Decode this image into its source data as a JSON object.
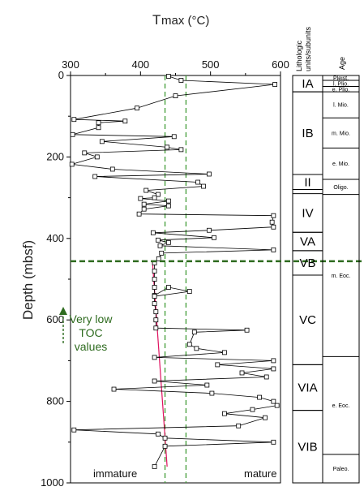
{
  "chart_data": {
    "type": "line",
    "title": "",
    "xlabel": "Tmax (°C)",
    "xlabel_main": "T",
    "xlabel_sub": "max (°C)",
    "ylabel": "Depth (mbsf)",
    "xlim": [
      300,
      600
    ],
    "ylim": [
      0,
      1000
    ],
    "y_inverted": true,
    "x_ticks": [
      "300",
      "400",
      "500",
      "600"
    ],
    "y_ticks": [
      "0",
      "200",
      "400",
      "600",
      "800",
      "1000"
    ],
    "series": [
      {
        "marker": "open-square",
        "color": "#000000",
        "points": [
          [
            440,
            2
          ],
          [
            458,
            12
          ],
          [
            592,
            22
          ],
          [
            450,
            50
          ],
          [
            395,
            80
          ],
          [
            305,
            108
          ],
          [
            378,
            112
          ],
          [
            340,
            116
          ],
          [
            340,
            128
          ],
          [
            303,
            145
          ],
          [
            448,
            150
          ],
          [
            345,
            162
          ],
          [
            438,
            176
          ],
          [
            458,
            182
          ],
          [
            320,
            190
          ],
          [
            338,
            200
          ],
          [
            302,
            218
          ],
          [
            360,
            230
          ],
          [
            498,
            242
          ],
          [
            335,
            248
          ],
          [
            482,
            262
          ],
          [
            490,
            272
          ],
          [
            408,
            282
          ],
          [
            425,
            292
          ],
          [
            420,
            300
          ],
          [
            400,
            302
          ],
          [
            440,
            308
          ],
          [
            405,
            316
          ],
          [
            440,
            320
          ],
          [
            405,
            328
          ],
          [
            398,
            340
          ],
          [
            590,
            344
          ],
          [
            588,
            360
          ],
          [
            590,
            372
          ],
          [
            498,
            380
          ],
          [
            418,
            386
          ],
          [
            505,
            398
          ],
          [
            425,
            404
          ],
          [
            440,
            410
          ],
          [
            428,
            418
          ],
          [
            590,
            428
          ],
          [
            430,
            436
          ],
          [
            426,
            450
          ],
          [
            420,
            460
          ],
          [
            420,
            480
          ],
          [
            420,
            500
          ],
          [
            420,
            520
          ],
          [
            420,
            540
          ],
          [
            440,
            520
          ],
          [
            470,
            530
          ],
          [
            420,
            542
          ],
          [
            420,
            560
          ],
          [
            422,
            580
          ],
          [
            422,
            600
          ],
          [
            422,
            620
          ],
          [
            552,
            625
          ],
          [
            477,
            630
          ],
          [
            470,
            660
          ],
          [
            480,
            670
          ],
          [
            520,
            680
          ],
          [
            420,
            692
          ],
          [
            590,
            700
          ],
          [
            510,
            710
          ],
          [
            590,
            720
          ],
          [
            545,
            730
          ],
          [
            580,
            740
          ],
          [
            420,
            750
          ],
          [
            495,
            760
          ],
          [
            362,
            770
          ],
          [
            502,
            780
          ],
          [
            570,
            790
          ],
          [
            590,
            800
          ],
          [
            595,
            810
          ],
          [
            560,
            820
          ],
          [
            520,
            830
          ],
          [
            578,
            840
          ],
          [
            540,
            860
          ],
          [
            305,
            870
          ],
          [
            425,
            880
          ],
          [
            435,
            890
          ],
          [
            590,
            900
          ],
          [
            435,
            910
          ],
          [
            420,
            960
          ]
        ]
      }
    ],
    "annotations": {
      "low_toc_label": [
        "Very low",
        "TOC",
        "values"
      ],
      "low_toc_depth_mbsf": 456,
      "immature_label": "immature",
      "mature_label": "mature",
      "threshold_lines_tmax": [
        435,
        465
      ],
      "trend_line": [
        [
          417,
          455
        ],
        [
          438,
          960
        ]
      ]
    },
    "legend": null,
    "grid": false
  },
  "strat_column": {
    "header_units": [
      "Lithologic",
      "units/subunits"
    ],
    "header_age": "Age",
    "units": [
      {
        "label": "IA",
        "top": 0,
        "bottom": 40
      },
      {
        "label": "IB",
        "top": 40,
        "bottom": 243
      },
      {
        "label": "II",
        "top": 243,
        "bottom": 280
      },
      {
        "label": "IV",
        "top": 290,
        "bottom": 385
      },
      {
        "label": "VA",
        "top": 385,
        "bottom": 430
      },
      {
        "label": "VB",
        "top": 430,
        "bottom": 490
      },
      {
        "label": "VC",
        "top": 490,
        "bottom": 710
      },
      {
        "label": "VIA",
        "top": 710,
        "bottom": 822
      },
      {
        "label": "VIB",
        "top": 822,
        "bottom": 1000
      }
    ],
    "ages": [
      {
        "label": "Pleist.",
        "top": 0,
        "bottom": 12
      },
      {
        "label": "l. Plio.",
        "top": 12,
        "bottom": 27
      },
      {
        "label": "e. Plio.",
        "top": 27,
        "bottom": 40
      },
      {
        "label": "l. Mio.",
        "top": 40,
        "bottom": 104
      },
      {
        "label": "m. Mio.",
        "top": 104,
        "bottom": 178
      },
      {
        "label": "e. Mio.",
        "top": 178,
        "bottom": 255
      },
      {
        "label": "Oligo.",
        "top": 255,
        "bottom": 292
      },
      {
        "label": "m. Eoc.",
        "top": 292,
        "bottom": 690
      },
      {
        "label": "e. Eoc.",
        "top": 690,
        "bottom": 930
      },
      {
        "label": "Paleo.",
        "top": 930,
        "bottom": 1000
      }
    ]
  }
}
